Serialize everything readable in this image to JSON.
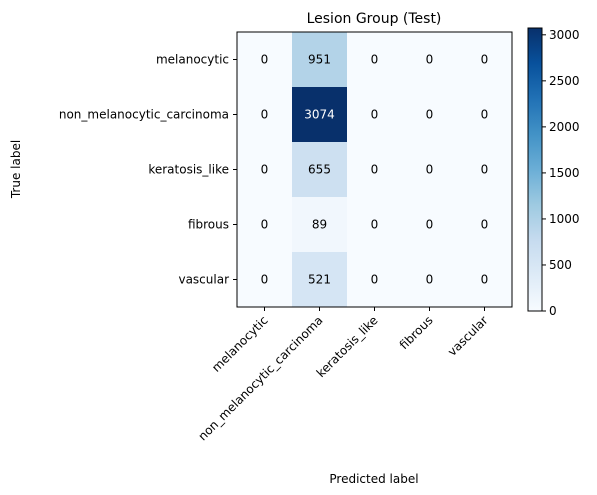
{
  "chart_data": {
    "type": "heatmap",
    "title": "Lesion Group (Test)",
    "xlabel": "Predicted label",
    "ylabel": "True label",
    "x_categories": [
      "melanocytic",
      "non_melanocytic_carcinoma",
      "keratosis_like",
      "fibrous",
      "vascular"
    ],
    "y_categories": [
      "melanocytic",
      "non_melanocytic_carcinoma",
      "keratosis_like",
      "fibrous",
      "vascular"
    ],
    "values": [
      [
        0,
        951,
        0,
        0,
        0
      ],
      [
        0,
        3074,
        0,
        0,
        0
      ],
      [
        0,
        655,
        0,
        0,
        0
      ],
      [
        0,
        89,
        0,
        0,
        0
      ],
      [
        0,
        521,
        0,
        0,
        0
      ]
    ],
    "colormap": "Blues",
    "vmin": 0,
    "vmax": 3074,
    "colorbar_ticks": [
      0,
      500,
      1000,
      1500,
      2000,
      2500,
      3000
    ],
    "grid": false,
    "x_tick_rotation": 45
  }
}
